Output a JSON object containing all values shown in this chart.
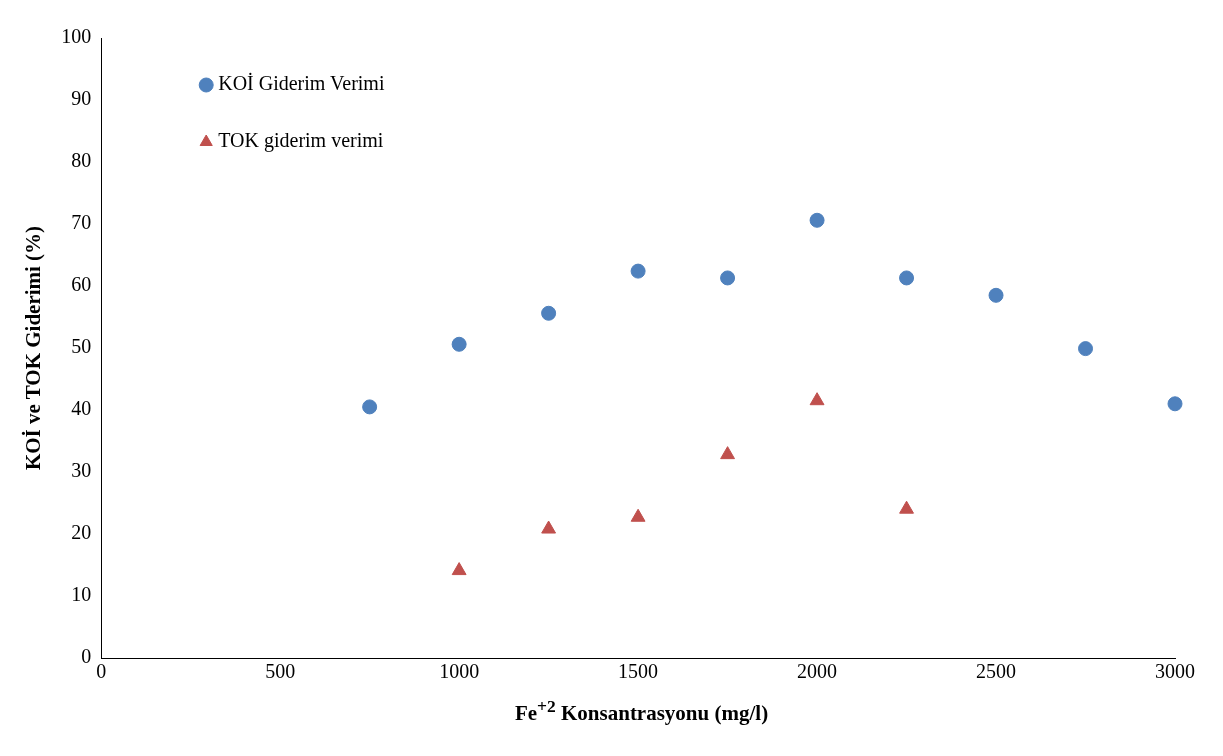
{
  "chart_data": {
    "type": "scatter",
    "xlabel": "Fe$^{+2}$ Konsantrasyonu (mg/l)",
    "ylabel": "KOİ ve TOK Giderimi (%)",
    "xlim": [
      0,
      3000
    ],
    "xticks": [
      0,
      500,
      1000,
      1500,
      2000,
      2500,
      3000
    ],
    "ylim": [
      0,
      100
    ],
    "yticks": [
      0,
      10,
      20,
      30,
      40,
      50,
      60,
      70,
      80,
      90,
      100
    ],
    "grid": false,
    "legend": "top left",
    "series": [
      {
        "name": "KOİ Giderim Verimi",
        "color": "#4f81bd",
        "marker": "circle",
        "x": [
          750,
          1000,
          1250,
          1500,
          1750,
          2000,
          2250,
          2500,
          2750,
          3000
        ],
        "values": [
          40.5,
          50.6,
          55.6,
          62.4,
          61.3,
          70.6,
          61.3,
          58.5,
          49.9,
          41.0
        ]
      },
      {
        "name": "TOK giderim verimi",
        "color": "#c0504d",
        "marker": "triangle",
        "x": [
          1000,
          1250,
          1500,
          1750,
          2000,
          2250
        ],
        "values": [
          14.1,
          20.8,
          22.7,
          32.8,
          41.5,
          24.0
        ]
      }
    ]
  }
}
